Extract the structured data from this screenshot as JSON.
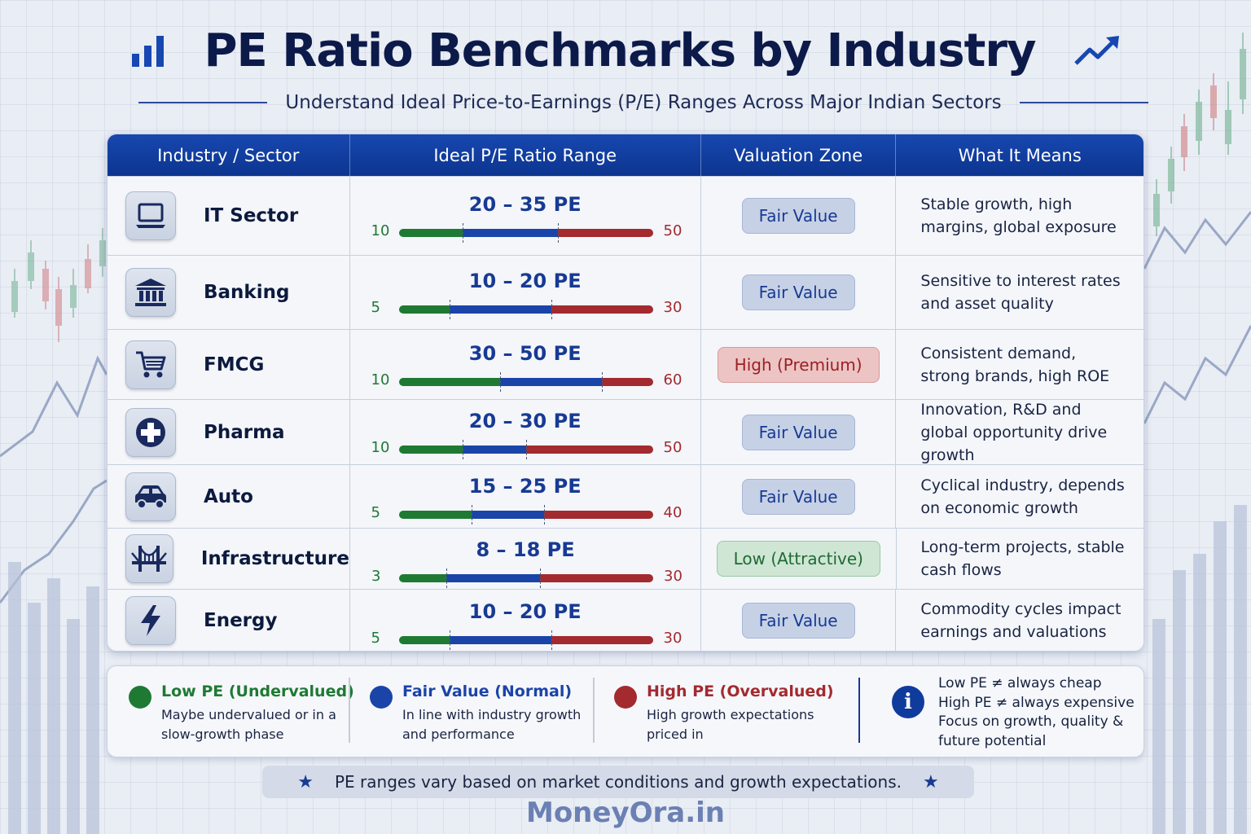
{
  "header": {
    "title": "PE Ratio Benchmarks by Industry",
    "subtitle": "Understand Ideal Price-to-Earnings (P/E) Ranges Across Major Indian Sectors"
  },
  "table": {
    "columns": [
      "Industry / Sector",
      "Ideal P/E Ratio Range",
      "Valuation Zone",
      "What It Means"
    ],
    "rows": [
      {
        "sector": "IT Sector",
        "icon": "laptop-icon",
        "range": "20 – 35 PE",
        "min": "10",
        "max": "50",
        "low": 20,
        "high": 35,
        "scale_min": 10,
        "scale_max": 50,
        "zone": "Fair Value",
        "zone_type": "fair",
        "meaning": "Stable growth, high margins, global exposure"
      },
      {
        "sector": "Banking",
        "icon": "bank-icon",
        "range": "10 – 20 PE",
        "min": "5",
        "max": "30",
        "low": 10,
        "high": 20,
        "scale_min": 5,
        "scale_max": 30,
        "zone": "Fair Value",
        "zone_type": "fair",
        "meaning": "Sensitive to interest rates and asset quality"
      },
      {
        "sector": "FMCG",
        "icon": "cart-icon",
        "range": "30 – 50 PE",
        "min": "10",
        "max": "60",
        "low": 30,
        "high": 50,
        "scale_min": 10,
        "scale_max": 60,
        "zone": "High (Premium)",
        "zone_type": "high",
        "meaning": "Consistent demand, strong brands, high ROE"
      },
      {
        "sector": "Pharma",
        "icon": "medical-cross-icon",
        "range": "20 – 30 PE",
        "min": "10",
        "max": "50",
        "low": 20,
        "high": 30,
        "scale_min": 10,
        "scale_max": 50,
        "zone": "Fair Value",
        "zone_type": "fair",
        "meaning": "Innovation, R&D and global opportunity drive growth"
      },
      {
        "sector": "Auto",
        "icon": "car-icon",
        "range": "15 – 25 PE",
        "min": "5",
        "max": "40",
        "low": 15,
        "high": 25,
        "scale_min": 5,
        "scale_max": 40,
        "zone": "Fair Value",
        "zone_type": "fair",
        "meaning": "Cyclical industry, depends on economic growth"
      },
      {
        "sector": "Infrastructure",
        "icon": "bridge-icon",
        "range": "8 – 18 PE",
        "min": "3",
        "max": "30",
        "low": 8,
        "high": 18,
        "scale_min": 3,
        "scale_max": 30,
        "zone": "Low (Attractive)",
        "zone_type": "low",
        "meaning": "Long-term projects, stable cash flows"
      },
      {
        "sector": "Energy",
        "icon": "lightning-icon",
        "range": "10 – 20 PE",
        "min": "5",
        "max": "30",
        "low": 10,
        "high": 20,
        "scale_min": 5,
        "scale_max": 30,
        "zone": "Fair Value",
        "zone_type": "fair",
        "meaning": "Commodity cycles impact earnings and valuations"
      }
    ]
  },
  "legend": {
    "items": [
      {
        "title": "Low PE (Undervalued)",
        "desc": "Maybe undervalued or in a slow-growth phase",
        "color": "#1e7a33"
      },
      {
        "title": "Fair Value (Normal)",
        "desc": "In line with industry growth and performance",
        "color": "#1b44a8"
      },
      {
        "title": "High PE (Overvalued)",
        "desc": "High growth expectations priced in",
        "color": "#a32a2f"
      }
    ],
    "info_lines": [
      "Low PE ≠ always cheap",
      "High PE ≠ always expensive",
      "Focus on growth, quality &",
      "future potential"
    ]
  },
  "note": "PE ranges vary based on market conditions and growth expectations.",
  "brand": "MoneyOra.in",
  "colors": {
    "primary": "#0e3a9a",
    "low": "#1e7a33",
    "fair": "#1b44a8",
    "high": "#a32a2f"
  }
}
